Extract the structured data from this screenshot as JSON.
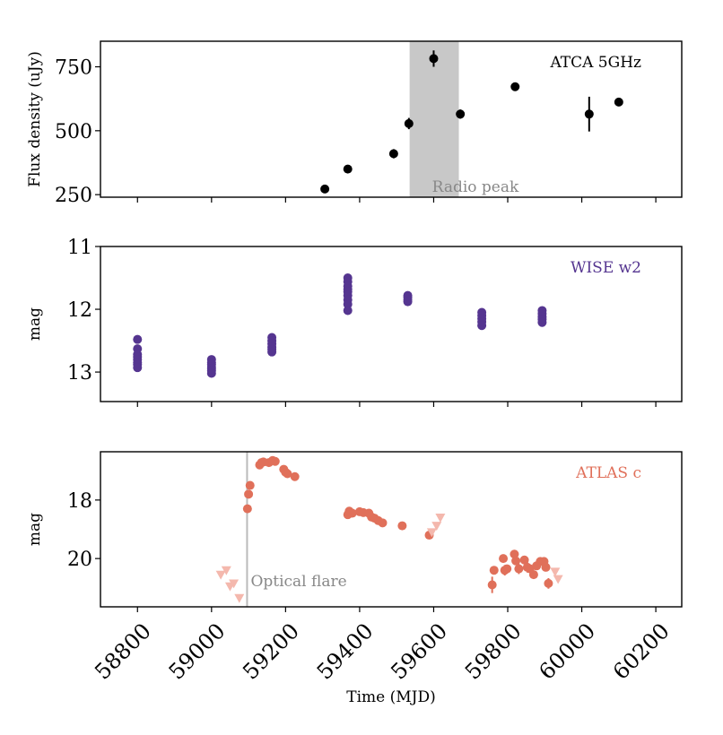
{
  "chart_data": {
    "type": "scatter",
    "xlabel": "Time (MJD)",
    "xlim": [
      58700,
      60270
    ],
    "xticks": [
      58800,
      59000,
      59200,
      59400,
      59600,
      59800,
      60000,
      60200
    ],
    "panels": [
      {
        "id": "atca",
        "ylabel": "Flux density (uJy)",
        "ylim": [
          240,
          850
        ],
        "yticks": [
          250,
          500,
          750
        ],
        "legend": "ATCA 5GHz",
        "legend_placement": "top-right",
        "color": "#000000",
        "shaded_region": {
          "x": [
            59535,
            59668
          ],
          "label": "Radio peak",
          "color": "#c8c8c8"
        },
        "series": [
          {
            "name": "ATCA 5GHz",
            "x": [
              59306,
              59368,
              59492,
              59533,
              59600,
              59672,
              59820,
              60020,
              60100
            ],
            "y": [
              272,
              350,
              410,
              528,
              782,
              565,
              672,
              565,
              612
            ],
            "yerr": [
              8,
              10,
              18,
              22,
              32,
              18,
              10,
              68,
              16
            ]
          }
        ]
      },
      {
        "id": "wise",
        "ylabel": "mag",
        "ylim": [
          13.47,
          11.0
        ],
        "yticks": [
          11,
          12,
          13
        ],
        "legend": "WISE w2",
        "legend_placement": "top-right",
        "color": "#553590",
        "series": [
          {
            "name": "WISE w2",
            "x": [
              58800,
              58800,
              58800,
              58800,
              58800,
              58800,
              58800,
              58800,
              59000,
              59000,
              59000,
              59000,
              59000,
              59000,
              59000,
              59163,
              59163,
              59163,
              59163,
              59163,
              59163,
              59368,
              59368,
              59368,
              59368,
              59368,
              59368,
              59368,
              59368,
              59368,
              59530,
              59530,
              59530,
              59530,
              59730,
              59730,
              59730,
              59730,
              59730,
              59893,
              59893,
              59893,
              59893,
              59893
            ],
            "y": [
              12.48,
              12.63,
              12.72,
              12.76,
              12.8,
              12.85,
              12.88,
              12.93,
              12.8,
              12.85,
              12.88,
              12.92,
              12.95,
              12.98,
              13.02,
              12.45,
              12.5,
              12.55,
              12.6,
              12.64,
              12.68,
              11.5,
              11.56,
              11.63,
              11.68,
              11.72,
              11.78,
              11.85,
              11.92,
              12.02,
              11.78,
              11.81,
              11.85,
              11.88,
              12.05,
              12.1,
              12.15,
              12.2,
              12.26,
              12.02,
              12.07,
              12.12,
              12.16,
              12.21
            ]
          }
        ]
      },
      {
        "id": "atlas",
        "ylabel": "mag",
        "ylim": [
          21.65,
          16.35
        ],
        "yticks": [
          18,
          20
        ],
        "legend": "ATLAS c",
        "legend_placement": "top-right",
        "color": "#e0705a",
        "vline": {
          "x": 59096,
          "label": "Optical flare",
          "color": "#bbbbbb"
        },
        "series": [
          {
            "name": "ATLAS c detections",
            "x": [
              59097,
              59100,
              59104,
              59130,
              59135,
              59140,
              59155,
              59165,
              59172,
              59195,
              59200,
              59205,
              59225,
              59368,
              59372,
              59380,
              59400,
              59410,
              59425,
              59432,
              59440,
              59450,
              59462,
              59515,
              59588,
              59758,
              59763,
              59788,
              59792,
              59798,
              59818,
              59822,
              59830,
              59845,
              59853,
              59860,
              59870,
              59878,
              59888,
              59898,
              59903,
              59910
            ],
            "y": [
              18.3,
              17.8,
              17.5,
              16.8,
              16.72,
              16.7,
              16.72,
              16.65,
              16.68,
              16.95,
              17.05,
              17.1,
              17.2,
              18.5,
              18.38,
              18.45,
              18.4,
              18.43,
              18.45,
              18.58,
              18.62,
              18.7,
              18.78,
              18.88,
              19.2,
              20.9,
              20.4,
              20.0,
              20.4,
              20.35,
              19.85,
              20.08,
              20.35,
              20.05,
              20.3,
              20.35,
              20.55,
              20.25,
              20.1,
              20.1,
              20.3,
              20.85
            ],
            "yerr": [
              0,
              0,
              0,
              0,
              0,
              0,
              0,
              0,
              0,
              0,
              0,
              0,
              0,
              0,
              0,
              0,
              0,
              0,
              0,
              0,
              0,
              0,
              0.12,
              0,
              0,
              0.28,
              0,
              0,
              0.18,
              0,
              0,
              0.1,
              0.18,
              0,
              0.18,
              0,
              0.14,
              0,
              0,
              0.12,
              0,
              0.18
            ]
          },
          {
            "name": "ATLAS c upper limits",
            "marker": "triangle-down",
            "x": [
              59025,
              59040,
              59050,
              59060,
              59075,
              59595,
              59608,
              59618,
              59928,
              59936
            ],
            "y": [
              20.55,
              20.4,
              20.95,
              20.85,
              21.35,
              19.1,
              18.88,
              18.6,
              20.45,
              20.7
            ]
          }
        ]
      }
    ]
  }
}
